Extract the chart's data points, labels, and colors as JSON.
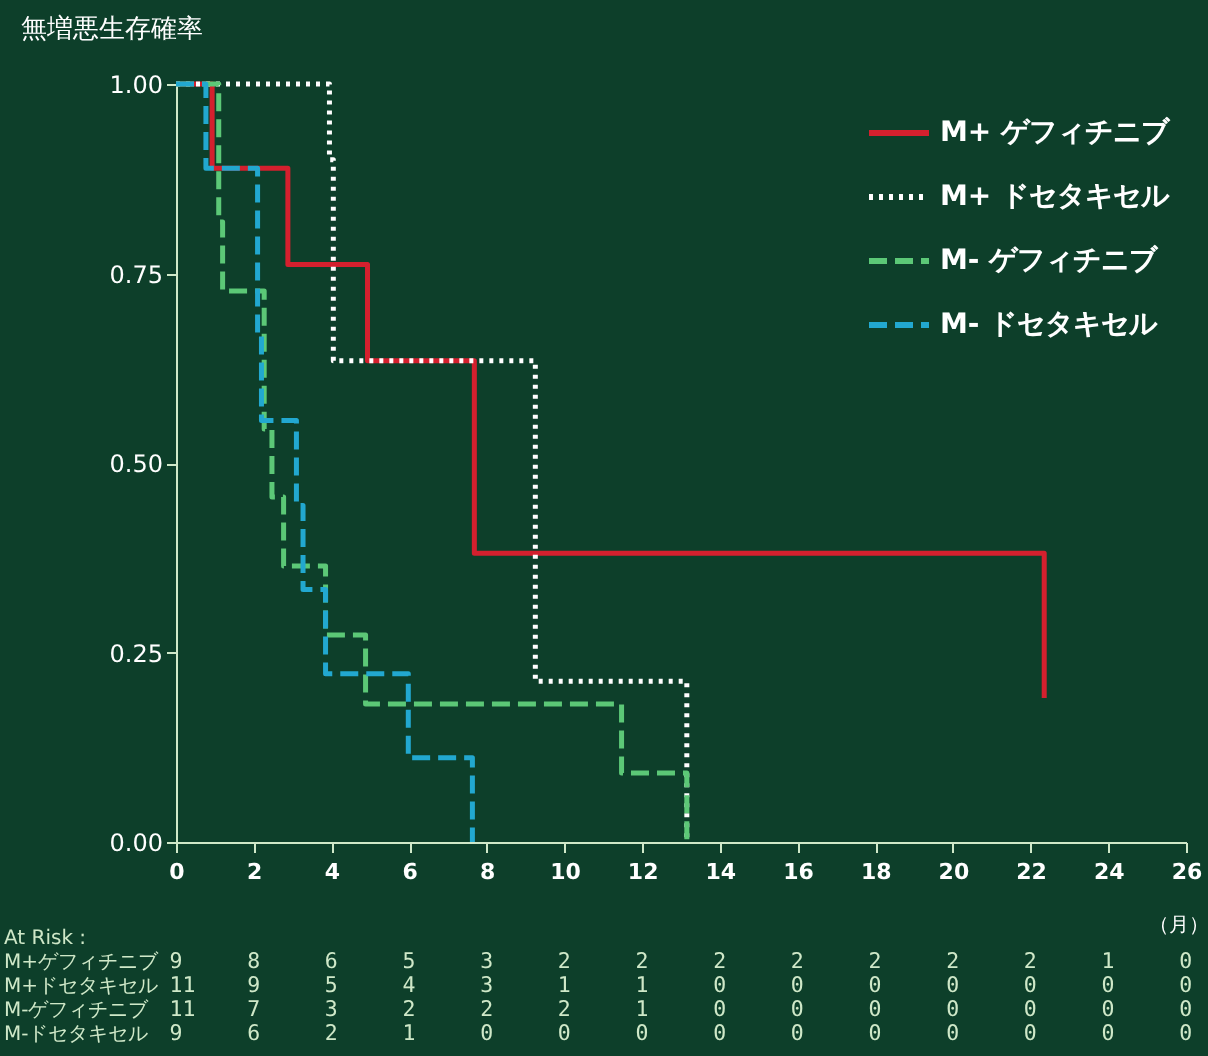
{
  "chart_data": {
    "type": "step",
    "xlabel": "（月）",
    "ylabel": "無増悪生存確率",
    "xlim": [
      0,
      26
    ],
    "xticks": [
      0,
      2,
      4,
      6,
      8,
      10,
      12,
      14,
      16,
      18,
      20,
      22,
      24,
      26
    ],
    "ylim": [
      0,
      1
    ],
    "yticks": [
      {
        "value": 0,
        "label": "0.00"
      },
      {
        "value": 0.25,
        "label": "0.25"
      },
      {
        "value": 0.5,
        "label": "0.50"
      },
      {
        "value": 0.75,
        "label": "0.75"
      },
      {
        "value": 1,
        "label": "1.00"
      }
    ],
    "series": [
      {
        "name": "M+ ゲフィチニブ",
        "color": "#d4202e",
        "line_style": "solid",
        "x": [
          0,
          0.93,
          2.88,
          4.93,
          7.68,
          22.35
        ],
        "values": [
          1,
          0.889,
          0.762,
          0.635,
          0.381,
          0.19
        ]
      },
      {
        "name": "M+ ドセタキセル",
        "color": "#ffffff",
        "line_style": "dotted",
        "x": [
          0,
          3.95,
          4.05,
          9.25,
          13.15
        ],
        "values": [
          1,
          0.9,
          0.635,
          0.212,
          0
        ]
      },
      {
        "name": "M- ゲフィチニブ",
        "color": "#5cc877",
        "line_style": "dashed",
        "x": [
          0,
          1.1,
          1.2,
          2.27,
          2.47,
          2.77,
          3.85,
          4.88,
          11.47,
          13.15
        ],
        "values": [
          1,
          0.818,
          0.727,
          0.545,
          0.455,
          0.364,
          0.273,
          0.182,
          0.091,
          0
        ]
      },
      {
        "name": "M- ドセタキセル",
        "color": "#22a8d0",
        "line_style": "dashed",
        "x": [
          0,
          0.77,
          2.1,
          2.2,
          3.1,
          3.27,
          3.85,
          5.98,
          7.63
        ],
        "values": [
          1,
          0.889,
          0.667,
          0.556,
          0.444,
          0.333,
          0.222,
          0.111,
          0
        ]
      }
    ],
    "legend": "top right",
    "grid": false,
    "annotations": [
      "At Risk :",
      "M+ゲフィチニブ",
      "9 8 6 5 3 2 2 2 2 2 2 2 1 0",
      "M+ドセタキセル",
      "11 9 5 4 3 1 1 0 0 0 0 0 0 0",
      "M-ゲフィチニブ",
      "11 7 3 2 2 2 1 0 0 0 0 0 0 0",
      "M-ドセタキセル",
      "9 6 2 1 0 0 0 0 0 0 0 0 0 0"
    ]
  }
}
